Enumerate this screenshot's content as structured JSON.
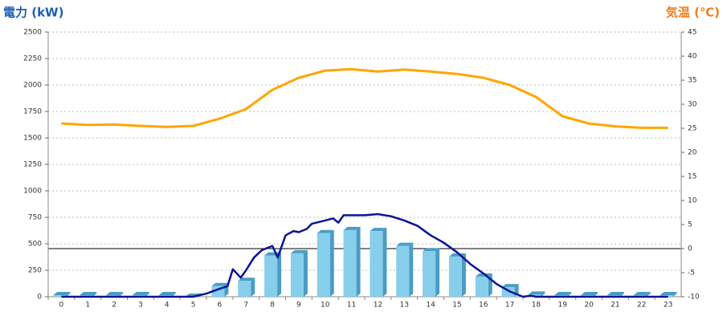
{
  "chart_data": {
    "type": "combo",
    "y_label": "電力 (kW)",
    "y_label_color": "#1a5fb4",
    "y2_label": "気温 (℃)",
    "y2_label_color": "#f07d19",
    "categories": [
      "0",
      "1",
      "2",
      "3",
      "4",
      "5",
      "6",
      "7",
      "8",
      "9",
      "10",
      "11",
      "12",
      "13",
      "14",
      "15",
      "16",
      "17",
      "18",
      "19",
      "20",
      "21",
      "22",
      "23"
    ],
    "ylim": [
      0,
      2500
    ],
    "yticks": [
      0,
      250,
      500,
      750,
      1000,
      1250,
      1500,
      1750,
      2000,
      2250,
      2500
    ],
    "y2lim": [
      -10,
      45
    ],
    "y2ticks": [
      -10,
      -5,
      0,
      5,
      10,
      15,
      20,
      25,
      30,
      35,
      40,
      45
    ],
    "grid": true,
    "series": [
      {
        "type": "bar",
        "color": "#87ceeb",
        "side_color": "#4a9cc4",
        "values": [
          15,
          15,
          15,
          15,
          15,
          0,
          100,
          150,
          390,
          410,
          600,
          630,
          620,
          480,
          430,
          380,
          190,
          90,
          20,
          15,
          15,
          15,
          15,
          15
        ]
      },
      {
        "type": "line",
        "color": "#0a1496",
        "x": [
          0,
          1,
          2,
          3,
          4,
          5,
          5.5,
          6,
          6.3,
          6.5,
          6.8,
          7,
          7.3,
          7.6,
          8,
          8.2,
          8.5,
          8.8,
          9,
          9.3,
          9.5,
          10,
          10.3,
          10.5,
          10.7,
          11,
          11.5,
          12,
          12.5,
          13,
          13.5,
          14,
          14.5,
          15,
          15.5,
          16,
          16.5,
          17,
          17.5,
          17.8,
          18,
          19,
          20,
          21,
          22,
          23
        ],
        "values": [
          0,
          0,
          0,
          0,
          0,
          0,
          30,
          75,
          100,
          260,
          180,
          250,
          370,
          440,
          480,
          370,
          580,
          620,
          610,
          640,
          690,
          720,
          740,
          700,
          770,
          770,
          770,
          780,
          760,
          720,
          670,
          580,
          510,
          420,
          310,
          220,
          120,
          50,
          0,
          10,
          0,
          0,
          0,
          0,
          0,
          0
        ]
      },
      {
        "type": "line",
        "axis": "y2",
        "color": "#ffa500",
        "values": [
          26,
          25.7,
          25.8,
          25.5,
          25.3,
          25.5,
          27,
          29,
          33,
          35.5,
          37,
          37.3,
          36.8,
          37.2,
          36.8,
          36.3,
          35.5,
          34,
          31.5,
          27.5,
          26,
          25.4,
          25.1,
          25.1
        ]
      }
    ]
  }
}
